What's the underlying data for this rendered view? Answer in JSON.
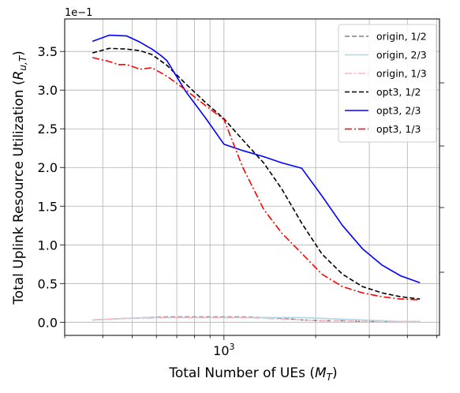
{
  "chart_data": {
    "type": "line",
    "title": "",
    "xlabel": "Total Number of UEs ($M_T$)",
    "ylabel": "Total Uplink Resource Utilization ($R_{u,T}$)",
    "y_offset_label": "1e−1",
    "x_scale": "log",
    "xlim": [
      300,
      5100
    ],
    "ylim": [
      -0.17,
      3.92
    ],
    "x_major_ticks": [
      {
        "value": 1000,
        "label": "10^3"
      }
    ],
    "y_ticks": [
      0.0,
      0.5,
      1.0,
      1.5,
      2.0,
      2.5,
      3.0,
      3.5
    ],
    "y_tick_labels": [
      "0.0",
      "0.5",
      "1.0",
      "1.5",
      "2.0",
      "2.5",
      "3.0",
      "3.5"
    ],
    "grid": true,
    "legend_position": "top-right",
    "series": [
      {
        "name": "origin, 1/2",
        "color": "#808080",
        "dash": "dashed",
        "x": [
          370,
          420,
          480,
          560,
          650,
          750,
          870,
          1000,
          1150,
          1350,
          1550,
          1800,
          2100,
          2450,
          2850,
          3300,
          3800,
          4400
        ],
        "y": [
          0.03,
          0.04,
          0.05,
          0.06,
          0.07,
          0.07,
          0.07,
          0.07,
          0.07,
          0.06,
          0.05,
          0.03,
          0.02,
          0.02,
          0.01,
          0.01,
          0.01,
          0.01
        ]
      },
      {
        "name": "origin, 2/3",
        "color": "#add8e6",
        "dash": "solid",
        "x": [
          370,
          420,
          480,
          560,
          650,
          750,
          870,
          1000,
          1150,
          1350,
          1550,
          1800,
          2100,
          2450,
          2850,
          3300,
          3800,
          4400
        ],
        "y": [
          0.03,
          0.04,
          0.05,
          0.06,
          0.06,
          0.06,
          0.06,
          0.06,
          0.06,
          0.06,
          0.06,
          0.06,
          0.05,
          0.04,
          0.03,
          0.02,
          0.01,
          0.01
        ]
      },
      {
        "name": "origin, 1/3",
        "color": "#ffb6c1",
        "dash": "dashdot",
        "x": [
          370,
          420,
          480,
          560,
          650,
          750,
          870,
          1000,
          1150,
          1350,
          1550,
          1800,
          2100,
          2450,
          2850,
          3300,
          3800,
          4400
        ],
        "y": [
          0.03,
          0.04,
          0.05,
          0.05,
          0.06,
          0.06,
          0.06,
          0.06,
          0.06,
          0.05,
          0.04,
          0.03,
          0.02,
          0.02,
          0.01,
          0.01,
          0.01,
          0.01
        ]
      },
      {
        "name": "opt3, 1/2",
        "color": "#000000",
        "dash": "dashed",
        "x": [
          370,
          420,
          480,
          530,
          580,
          650,
          750,
          870,
          1000,
          1150,
          1350,
          1550,
          1800,
          2100,
          2450,
          2850,
          3300,
          3800,
          4400
        ],
        "y": [
          3.48,
          3.54,
          3.53,
          3.51,
          3.46,
          3.32,
          3.08,
          2.84,
          2.63,
          2.36,
          2.06,
          1.72,
          1.28,
          0.88,
          0.62,
          0.46,
          0.38,
          0.33,
          0.3
        ]
      },
      {
        "name": "opt3, 2/3",
        "color": "#0000ff",
        "dash": "solid",
        "x": [
          370,
          420,
          480,
          530,
          580,
          620,
          650,
          750,
          870,
          1000,
          1150,
          1350,
          1550,
          1800,
          2100,
          2450,
          2850,
          3300,
          3800,
          4400
        ],
        "y": [
          3.63,
          3.71,
          3.7,
          3.62,
          3.53,
          3.45,
          3.38,
          2.98,
          2.64,
          2.3,
          2.22,
          2.14,
          2.06,
          1.99,
          1.63,
          1.25,
          0.95,
          0.74,
          0.6,
          0.51
        ]
      },
      {
        "name": "opt3, 1/3",
        "color": "#ff0000",
        "dash": "dashdot",
        "x": [
          370,
          420,
          450,
          480,
          530,
          580,
          650,
          750,
          870,
          1000,
          1150,
          1350,
          1550,
          1800,
          2100,
          2450,
          2850,
          3300,
          3800,
          4400
        ],
        "y": [
          3.42,
          3.37,
          3.33,
          3.33,
          3.27,
          3.29,
          3.18,
          3.0,
          2.8,
          2.62,
          2.01,
          1.46,
          1.15,
          0.89,
          0.62,
          0.46,
          0.38,
          0.33,
          0.3,
          0.29
        ]
      }
    ]
  }
}
